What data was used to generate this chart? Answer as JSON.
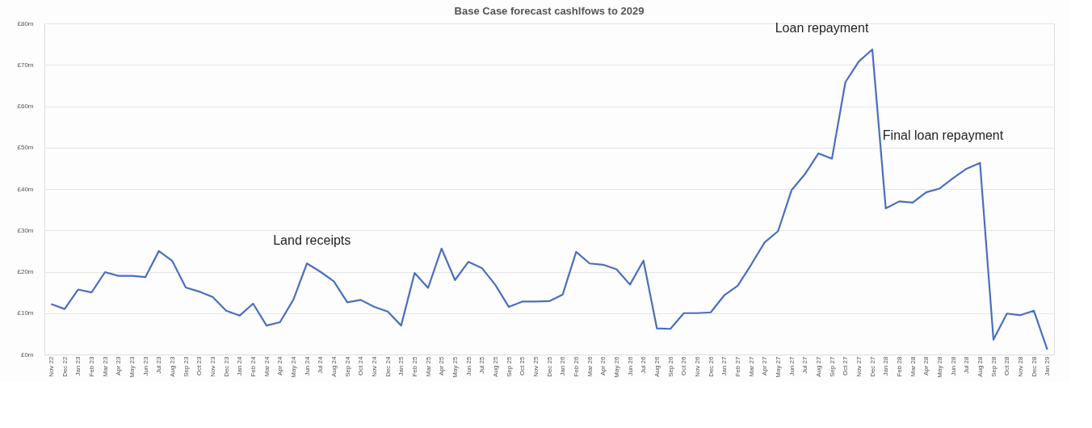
{
  "chart_data": {
    "type": "line",
    "title": "Base Case forecast cashlfows to 2029",
    "categories": [
      "Nov 22",
      "Dec 22",
      "Jan 23",
      "Feb 23",
      "Mar 23",
      "Apr 23",
      "May 23",
      "Jun 23",
      "Jul 23",
      "Aug 23",
      "Sep 23",
      "Oct 23",
      "Nov 23",
      "Dec 23",
      "Jan 24",
      "Feb 24",
      "Mar 24",
      "Apr 24",
      "May 24",
      "Jun 24",
      "Jul 24",
      "Aug 24",
      "Sep 24",
      "Oct 24",
      "Nov 24",
      "Dec 24",
      "Jan 25",
      "Feb 25",
      "Mar 25",
      "Apr 25",
      "May 25",
      "Jun 25",
      "Jul 25",
      "Aug 25",
      "Sep 25",
      "Oct 25",
      "Nov 25",
      "Dec 25",
      "Jan 26",
      "Feb 26",
      "Mar 26",
      "Apr 26",
      "May 26",
      "Jun 26",
      "Jul 26",
      "Aug 26",
      "Sep 26",
      "Oct 26",
      "Nov 26",
      "Dec 26",
      "Jan 27",
      "Feb 27",
      "Mar 27",
      "Apr 27",
      "May 27",
      "Jun 27",
      "Jul 27",
      "Aug 27",
      "Sep 27",
      "Oct 27",
      "Nov 27",
      "Dec 27",
      "Jan 28",
      "Feb 28",
      "Mar 28",
      "Apr 28",
      "May 28",
      "Jun 28",
      "Jul 28",
      "Aug 28",
      "Sep 28",
      "Oct 28",
      "Nov 28",
      "Dec 28",
      "Jan 29"
    ],
    "series": [
      {
        "color": "#4a6fbf",
        "values": [
          12.2,
          11,
          15.7,
          15,
          19.9,
          19,
          19,
          18.7,
          25,
          22.6,
          16.2,
          15.2,
          13.9,
          10.6,
          9.4,
          12.3,
          7,
          7.8,
          13.3,
          22,
          20,
          17.7,
          12.6,
          13.2,
          11.5,
          10.4,
          7,
          19.7,
          16.1,
          25.6,
          18,
          22.4,
          20.9,
          16.8,
          11.5,
          12.8,
          12.8,
          12.9,
          14.5,
          24.8,
          22,
          21.7,
          20.6,
          16.9,
          22.7,
          6.3,
          6.2,
          10,
          10,
          10.2,
          14.3,
          16.6,
          21.7,
          27.1,
          29.8,
          39.7,
          43.6,
          48.6,
          47.3,
          65.8,
          70.8,
          73.7,
          35.3,
          37,
          36.7,
          39.2,
          40.1,
          42.6,
          44.9,
          46.3,
          3.6,
          9.9,
          9.5,
          10.6,
          1.2
        ]
      }
    ],
    "ylim": [
      0,
      80
    ],
    "yticks": [
      {
        "value": 0,
        "label": "£0m"
      },
      {
        "value": 10,
        "label": "£10m"
      },
      {
        "value": 20,
        "label": "£20m"
      },
      {
        "value": 30,
        "label": "£30m"
      },
      {
        "value": 40,
        "label": "£40m"
      },
      {
        "value": 50,
        "label": "£50m"
      },
      {
        "value": 60,
        "label": "£60m"
      },
      {
        "value": 70,
        "label": "£70m"
      },
      {
        "value": 80,
        "label": "£80m"
      }
    ],
    "grid": "y",
    "marker": "none",
    "line_style": "solid",
    "annotations": [
      "Land receipts",
      "Loan repayment",
      "Final loan repayment"
    ]
  }
}
